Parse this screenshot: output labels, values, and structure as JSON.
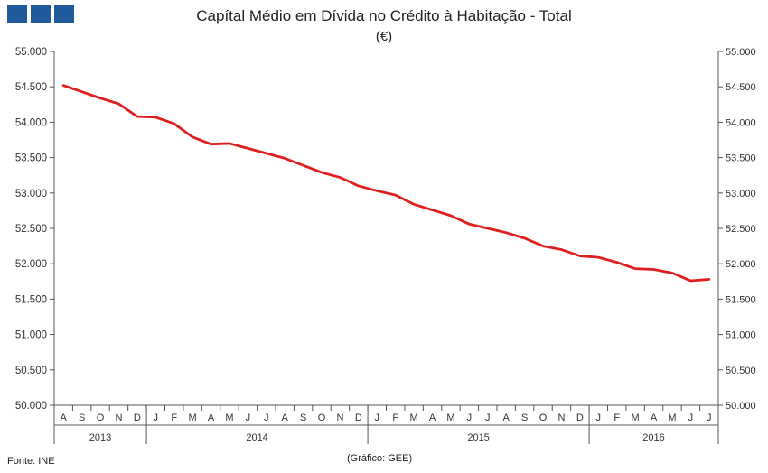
{
  "logo_icon": "institution-logo-icon",
  "chart_data": {
    "type": "line",
    "title": "Capítal Médio em Dívida no Crédito à Habitação - Total",
    "subtitle": "(€)",
    "ylim": [
      50000,
      55000
    ],
    "yticks": [
      50000,
      50500,
      51000,
      51500,
      52000,
      52500,
      53000,
      53500,
      54000,
      54500,
      55000
    ],
    "ytick_labels": [
      "50.000",
      "50.500",
      "51.000",
      "51.500",
      "52.000",
      "52.500",
      "53.000",
      "53.500",
      "54.000",
      "54.500",
      "55.000"
    ],
    "months": [
      "A",
      "S",
      "O",
      "N",
      "D",
      "J",
      "F",
      "M",
      "A",
      "M",
      "J",
      "J",
      "A",
      "S",
      "O",
      "N",
      "D",
      "J",
      "F",
      "M",
      "A",
      "M",
      "J",
      "J",
      "A",
      "S",
      "O",
      "N",
      "D",
      "J",
      "F",
      "M",
      "A",
      "M",
      "J",
      "J"
    ],
    "years": [
      {
        "label": "2013",
        "start": 0,
        "end": 4
      },
      {
        "label": "2014",
        "start": 5,
        "end": 16
      },
      {
        "label": "2015",
        "start": 17,
        "end": 28
      },
      {
        "label": "2016",
        "start": 29,
        "end": 35
      }
    ],
    "series": [
      {
        "name": "Total",
        "color": "#e02020",
        "values": [
          54520,
          54430,
          54340,
          54260,
          54080,
          54070,
          53980,
          53790,
          53690,
          53700,
          53630,
          53560,
          53490,
          53390,
          53290,
          53220,
          53100,
          53030,
          52970,
          52840,
          52760,
          52680,
          52560,
          52500,
          52440,
          52360,
          52250,
          52200,
          52110,
          52090,
          52020,
          51930,
          51920,
          51870,
          51760,
          51780
        ]
      }
    ],
    "grid": false
  },
  "footer": {
    "source": "Fonte: INE",
    "credit": "(Gráfico: GEE)"
  }
}
